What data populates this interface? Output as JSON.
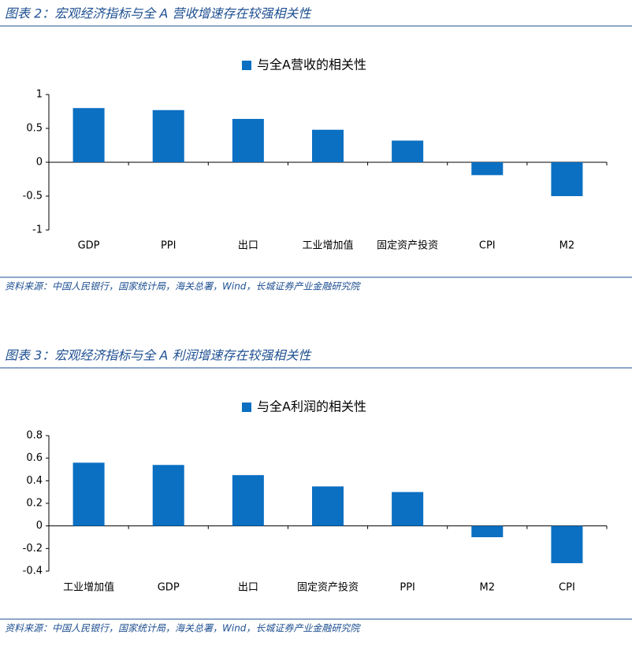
{
  "chart_data": [
    {
      "type": "bar",
      "title": "图表 2：宏观经济指标与全 A 营收增速存在较强相关性",
      "categories": [
        "GDP",
        "PPI",
        "出口",
        "工业增加值",
        "固定资产投资",
        "CPI",
        "M2"
      ],
      "series": [
        {
          "name": "与全A营收的相关性",
          "color": "#0b6fc2",
          "values": [
            0.8,
            0.77,
            0.64,
            0.48,
            0.32,
            -0.19,
            -0.5
          ]
        }
      ],
      "ylim": [
        -1,
        1
      ],
      "yticks": [
        -1,
        -0.5,
        0,
        0.5,
        1
      ],
      "source": "资料来源：中国人民银行，国家统计局，海关总署，Wind，长城证券产业金融研究院"
    },
    {
      "type": "bar",
      "title": "图表 3：宏观经济指标与全 A 利润增速存在较强相关性",
      "categories": [
        "工业增加值",
        "GDP",
        "出口",
        "固定资产投资",
        "PPI",
        "M2",
        "CPI"
      ],
      "series": [
        {
          "name": "与全A利润的相关性",
          "color": "#0b6fc2",
          "values": [
            0.56,
            0.54,
            0.45,
            0.35,
            0.3,
            -0.1,
            -0.33
          ]
        }
      ],
      "ylim": [
        -0.4,
        0.8
      ],
      "yticks": [
        -0.4,
        -0.2,
        0,
        0.2,
        0.4,
        0.6,
        0.8
      ],
      "source": "资料来源：中国人民银行，国家统计局，海关总署，Wind，长城证券产业金融研究院"
    }
  ]
}
